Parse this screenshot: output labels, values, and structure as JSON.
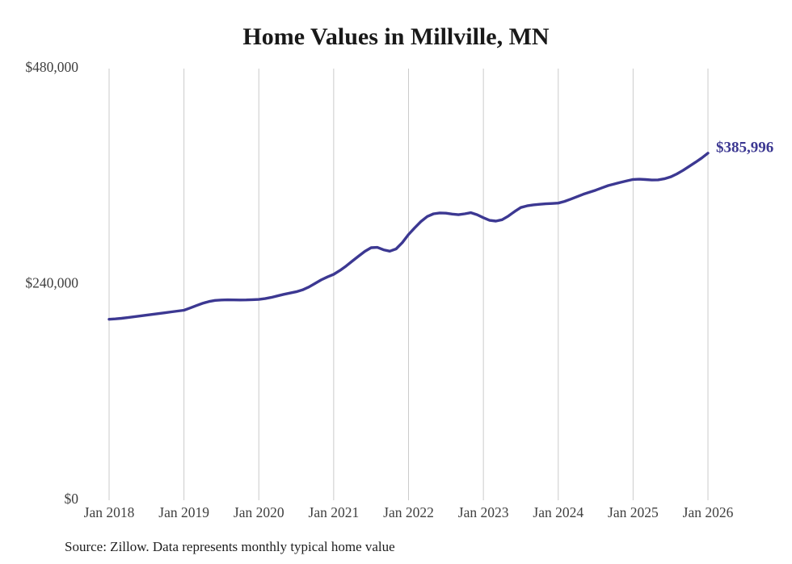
{
  "chart_data": {
    "type": "line",
    "title": "Home Values in Millville, MN",
    "source_note": "Source: Zillow. Data represents monthly typical home value",
    "series_name": "Monthly typical home value",
    "start_month": "2018-01",
    "end_month": "2026-01",
    "x_ticks": [
      "Jan 2018",
      "Jan 2019",
      "Jan 2020",
      "Jan 2021",
      "Jan 2022",
      "Jan 2023",
      "Jan 2024",
      "Jan 2025",
      "Jan 2026"
    ],
    "y_ticks": [
      {
        "label": "$0",
        "value": 0
      },
      {
        "label": "$240,000",
        "value": 240000
      },
      {
        "label": "$480,000",
        "value": 480000
      }
    ],
    "ylim": [
      0,
      480000
    ],
    "grid": "vertical-only",
    "legend": "none",
    "end_label": "$385,996",
    "end_value": 385996,
    "values": [
      201200,
      201700,
      202300,
      203100,
      204000,
      204900,
      205800,
      206700,
      207600,
      208500,
      209500,
      210400,
      211300,
      213800,
      216500,
      219000,
      221000,
      222200,
      222700,
      222900,
      222800,
      222700,
      222800,
      223000,
      223300,
      224200,
      225600,
      227300,
      229000,
      230400,
      231800,
      233900,
      237000,
      241000,
      245000,
      248300,
      251200,
      255500,
      260500,
      266000,
      271500,
      276800,
      280800,
      281200,
      278500,
      277000,
      279500,
      286500,
      295500,
      303000,
      310000,
      315500,
      318500,
      319500,
      319200,
      318200,
      317500,
      318500,
      319800,
      317500,
      314200,
      311200,
      310400,
      312000,
      316000,
      321000,
      325500,
      327400,
      328500,
      329100,
      329600,
      330000,
      330400,
      332300,
      334800,
      337500,
      340200,
      342500,
      344800,
      347400,
      349900,
      351700,
      353500,
      355200,
      356700,
      357000,
      356600,
      356100,
      356300,
      357400,
      359500,
      362800,
      366800,
      371300,
      375800,
      380600,
      385996
    ],
    "colors": {
      "line": "#3c3892",
      "grid": "#cbcbcb",
      "title": "#191919",
      "tick": "#3f3f3f",
      "source": "#1e1e1e",
      "background": "#ffffff"
    }
  }
}
